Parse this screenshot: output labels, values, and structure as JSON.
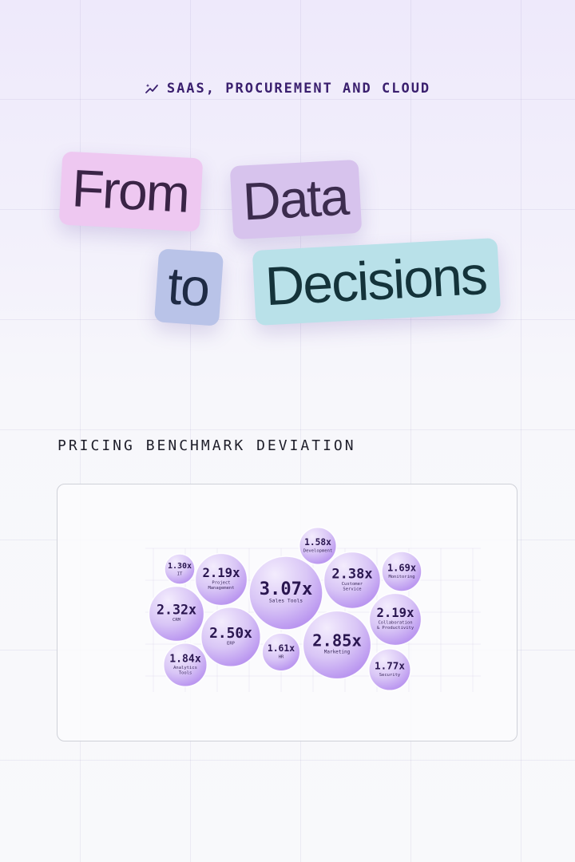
{
  "eyebrow": {
    "icon": "sparkle-trend-icon",
    "text": "SAAS, PROCUREMENT AND CLOUD"
  },
  "hero": {
    "words": [
      "From",
      "Data",
      "to",
      "Decisions"
    ]
  },
  "section_title": "PRICING BENCHMARK DEVIATION",
  "colors": {
    "accent": "#3a1f6e",
    "bubble_light": "#efe6fb",
    "bubble_mid": "#d6c2f5",
    "bubble_dark": "#b590ef"
  },
  "chart_data": {
    "type": "bubble",
    "title": "PRICING BENCHMARK DEVIATION",
    "unit": "x",
    "bubbles": [
      {
        "label": "Sales Tools",
        "value_text": "3.07x",
        "value": 3.07
      },
      {
        "label": "Marketing",
        "value_text": "2.85x",
        "value": 2.85
      },
      {
        "label": "ERP",
        "value_text": "2.50x",
        "value": 2.5
      },
      {
        "label": "Customer Service",
        "value_text": "2.38x",
        "value": 2.38
      },
      {
        "label": "CRM",
        "value_text": "2.32x",
        "value": 2.32
      },
      {
        "label": "Project Management",
        "value_text": "2.19x",
        "value": 2.19
      },
      {
        "label": "Collaboration & Productivity",
        "value_text": "2.19x",
        "value": 2.19
      },
      {
        "label": "Analytics Tools",
        "value_text": "1.84x",
        "value": 1.84
      },
      {
        "label": "Security",
        "value_text": "1.77x",
        "value": 1.77
      },
      {
        "label": "Monitoring",
        "value_text": "1.69x",
        "value": 1.69
      },
      {
        "label": "HR",
        "value_text": "1.61x",
        "value": 1.61
      },
      {
        "label": "Development",
        "value_text": "1.58x",
        "value": 1.58
      },
      {
        "label": "IT",
        "value_text": "1.30x",
        "value": 1.3
      }
    ]
  }
}
